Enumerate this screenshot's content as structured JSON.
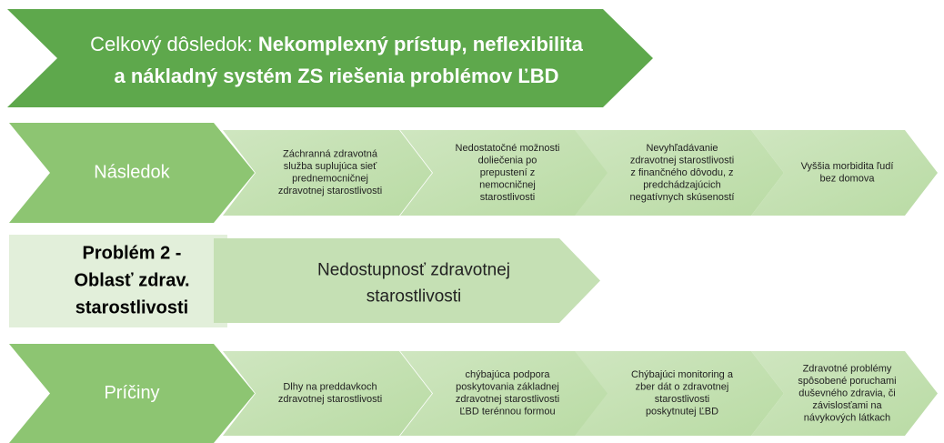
{
  "header": {
    "title_prefix": "Celkový dôsledok: ",
    "title_bold_lines": [
      "Nekomplexný prístup, neflexibilita",
      "a nákladný systém ZS riešenia problémov ĽBD"
    ]
  },
  "consequences": {
    "label": "Následok",
    "items": [
      [
        "Záchranná zdravotná",
        "služba suplujúca sieť",
        "prednemocničnej",
        "zdravotnej starostlivosti"
      ],
      [
        "Nedostatočné možnosti",
        "doliečenia po",
        "prepustení z",
        "nemocničnej",
        "starostlivosti"
      ],
      [
        "Nevyhľadávanie",
        "zdravotnej starostlivosti",
        "z finančného dôvodu, z",
        "predchádzajúcich",
        "negatívnych skúseností"
      ],
      [
        "Vyššia morbidita ľudí",
        "bez domova"
      ]
    ]
  },
  "problem": {
    "label_lines": [
      "Problém 2 -",
      "Oblasť zdrav.",
      "starostlivosti"
    ],
    "text_lines": [
      "Nedostupnosť zdravotnej",
      "starostlivosti"
    ]
  },
  "causes": {
    "label": "Príčiny",
    "items": [
      [
        "Dlhy na preddavkoch",
        "zdravotnej starostlivosti"
      ],
      [
        "chýbajúca podpora",
        "poskytovania základnej",
        "zdravotnej starostlivosti",
        "ĽBD terénnou formou"
      ],
      [
        "Chýbajúci monitoring a",
        "zber dát o zdravotnej",
        "starostlivosti",
        "poskytnutej ĽBD"
      ],
      [
        "Zdravotné problémy",
        "spôsobené poruchami",
        "duševného zdravia, či",
        "závislosťami na",
        "návykových látkach"
      ]
    ]
  }
}
